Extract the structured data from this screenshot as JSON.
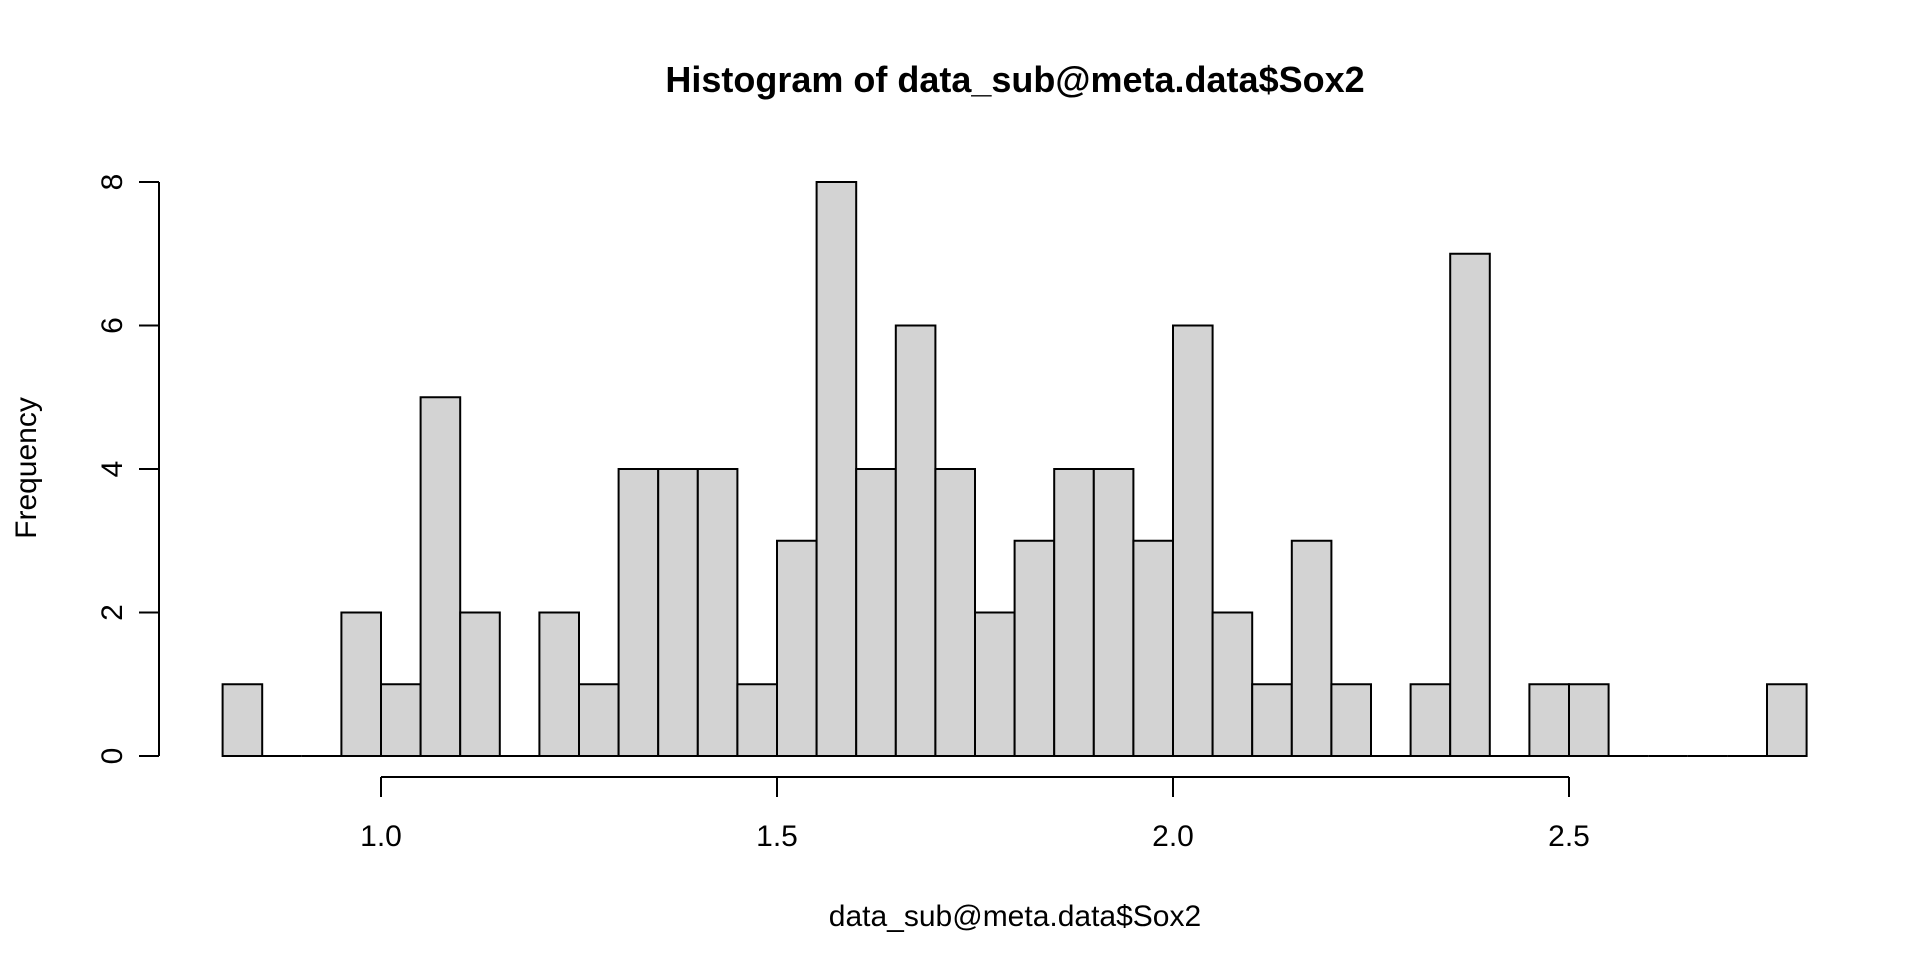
{
  "chart_data": {
    "type": "bar",
    "title": "Histogram of data_sub@meta.data$Sox2",
    "xlabel": "data_sub@meta.data$Sox2",
    "ylabel": "Frequency",
    "x_ticks": [
      "1.0",
      "1.5",
      "2.0",
      "2.5"
    ],
    "y_ticks": [
      "0",
      "2",
      "4",
      "6",
      "8"
    ],
    "xlim": [
      0.8,
      2.8
    ],
    "ylim": [
      0,
      8
    ],
    "bin_width": 0.05,
    "bin_start": 0.8,
    "values": [
      1,
      0,
      0,
      2,
      1,
      5,
      2,
      0,
      2,
      1,
      4,
      4,
      4,
      1,
      3,
      8,
      4,
      6,
      4,
      2,
      3,
      4,
      4,
      3,
      6,
      2,
      1,
      3,
      1,
      0,
      1,
      7,
      0,
      1,
      1,
      0,
      0,
      0,
      0,
      1
    ],
    "bar_fill": "#d3d3d3",
    "bar_stroke": "#000000",
    "grid": false,
    "legend": "none"
  }
}
